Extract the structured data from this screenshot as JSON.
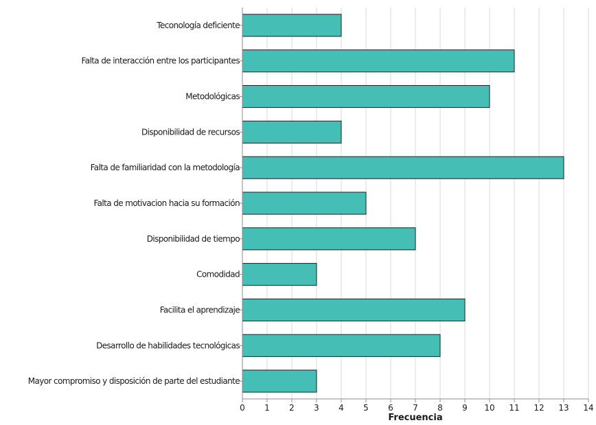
{
  "chart_data": {
    "type": "bar",
    "orientation": "horizontal",
    "categories": [
      "Teconología deficiente",
      "Falta de interacción entre los participantes",
      "Metodológicas",
      "Disponibilidad de recursos",
      "Falta de familiaridad con la metodología",
      "Falta de motivacion hacia su formación",
      "Disponibilidad de tiempo",
      "Comodidad",
      "Facilita el aprendizaje",
      "Desarrollo de habilidades tecnológicas",
      "Mayor compromiso y disposición de parte del estudiante"
    ],
    "values": [
      4,
      11,
      10,
      4,
      13,
      5,
      7,
      3,
      9,
      8,
      3
    ],
    "xlabel": "Frecuencia",
    "ylabel": "",
    "title": "",
    "xlim": [
      0,
      14
    ],
    "xticks": [
      "0",
      "1",
      "2",
      "3",
      "4",
      "5",
      "6",
      "7",
      "8",
      "9",
      "10",
      "11",
      "12",
      "13",
      "14"
    ],
    "grid": "vertical",
    "bar_color": "#45bfb6",
    "bar_stroke": "#1f1f1f",
    "grid_color": "#d9d9d9",
    "axis_color": "#8c8c8c"
  }
}
